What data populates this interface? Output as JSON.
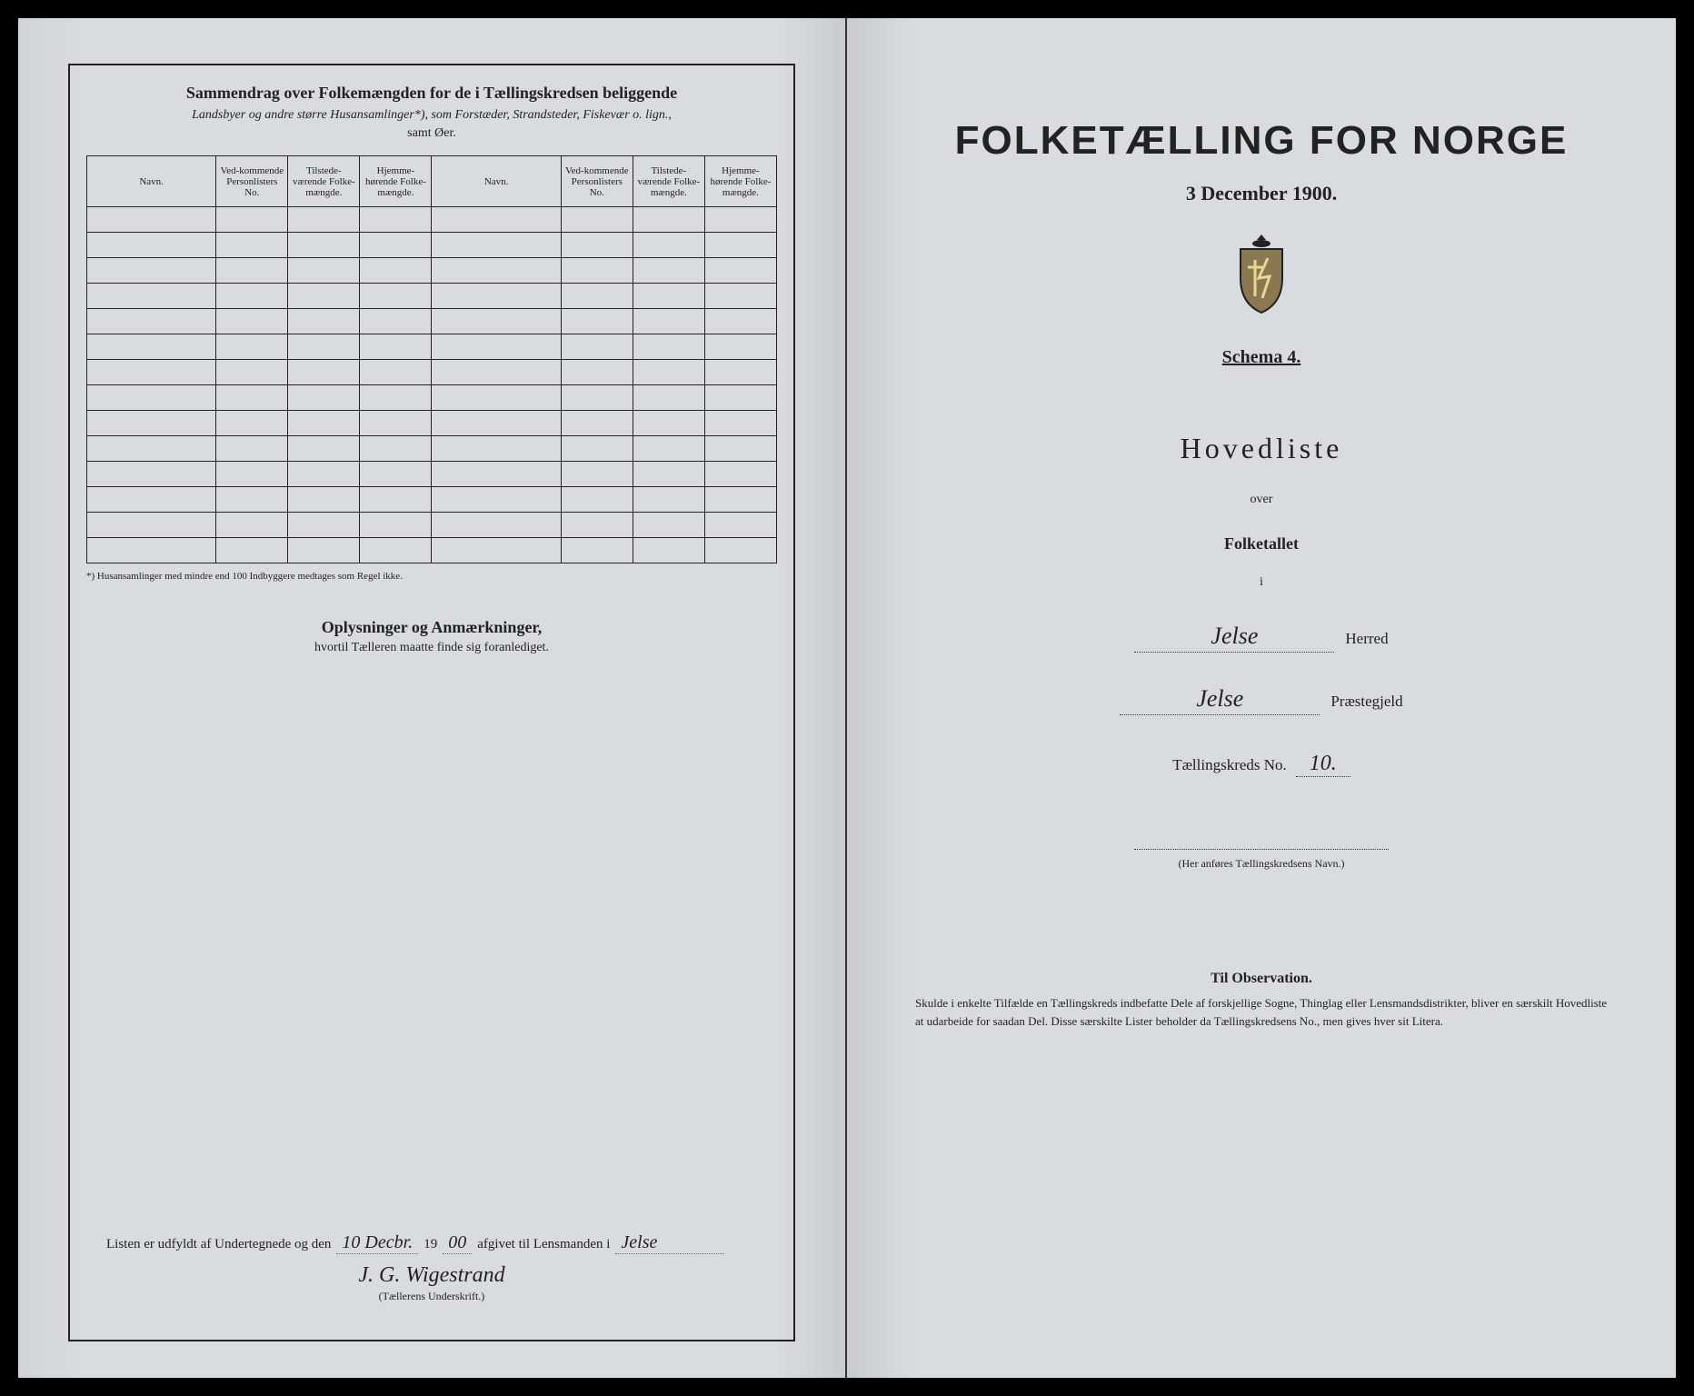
{
  "colors": {
    "page_bg": "#d8dce0",
    "ink": "#222222",
    "border": "#222222",
    "dotted": "#555555",
    "outer_bg": "#000000"
  },
  "typography": {
    "main_title_fontsize": 44,
    "hoved_fontsize": 32,
    "body_fontsize": 14,
    "script_fontsize": 24
  },
  "left": {
    "title": "Sammendrag over Folkemængden for de i Tællingskredsen beliggende",
    "subtitle_html": "Landsbyer og andre større Husansamlinger*), som Forstæder, Strandsteder, Fiskevær o. lign.,",
    "subtitle2": "samt Øer.",
    "table": {
      "headers": [
        "Navn.",
        "Ved-kommende Personlisters No.",
        "Tilstede-værende Folke-mængde.",
        "Hjemme-hørende Folke-mængde.",
        "Navn.",
        "Ved-kommende Personlisters No.",
        "Tilstede-værende Folke-mængde.",
        "Hjemme-hørende Folke-mængde."
      ],
      "blank_rows": 14
    },
    "footnote": "*) Husansamlinger med mindre end 100 Indbyggere medtages som Regel ikke.",
    "oplys_title": "Oplysninger og Anmærkninger,",
    "oplys_sub": "hvortil Tælleren maatte finde sig foranlediget.",
    "sig_text1": "Listen er udfyldt af Undertegnede og den",
    "sig_day": "10 Decbr.",
    "sig_text2": "19",
    "sig_year": "00",
    "sig_text3": "afgivet til Lensmanden i",
    "sig_place": "Jelse",
    "signature": "J. G. Wigestrand",
    "sig_label": "(Tællerens Underskrift.)"
  },
  "right": {
    "main_title": "FOLKETÆLLING FOR NORGE",
    "date": "3 December 1900.",
    "schema": "Schema 4.",
    "hoved": "Hovedliste",
    "over": "over",
    "folket": "Folketallet",
    "i": "i",
    "herred_fill": "Jelse",
    "herred_label": "Herred",
    "praeste_fill": "Jelse",
    "praeste_label": "Præstegjeld",
    "kreds_label": "Tællingskreds No.",
    "kreds_no": "10.",
    "navn_note": "(Her anføres Tællingskredsens Navn.)",
    "obs_title": "Til Observation.",
    "obs_body": "Skulde i enkelte Tilfælde en Tællingskreds indbefatte Dele af forskjellige Sogne, Thinglag eller Lensmandsdistrikter, bliver en særskilt Hovedliste at udarbeide for saadan Del. Disse særskilte Lister beholder da Tællingskredsens No., men gives hver sit Litera."
  }
}
